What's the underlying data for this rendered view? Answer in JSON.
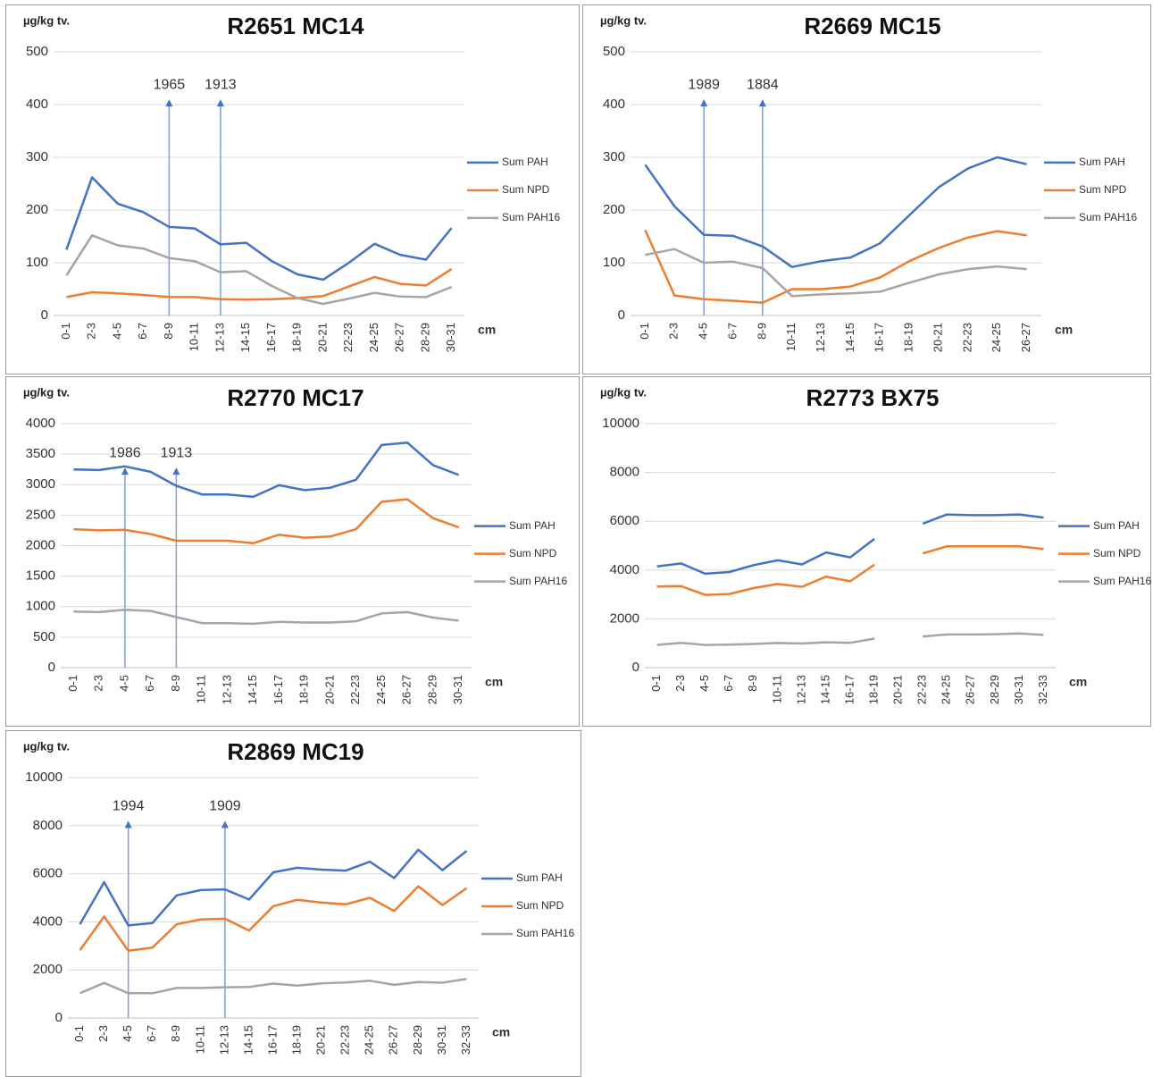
{
  "chart_data": [
    {
      "type": "line",
      "title": "R2651 MC14",
      "y_label": "µg/kg tv.",
      "x_label": "cm",
      "categories": [
        "0-1",
        "2-3",
        "4-5",
        "6-7",
        "8-9",
        "10-11",
        "12-13",
        "14-15",
        "16-17",
        "18-19",
        "20-21",
        "22-23",
        "24-25",
        "26-27",
        "28-29",
        "30-31"
      ],
      "series": [
        {
          "name": "Sum PAH",
          "color": "#4472c4",
          "values": [
            125,
            262,
            212,
            196,
            168,
            165,
            135,
            138,
            103,
            78,
            68,
            100,
            136,
            115,
            106,
            166
          ]
        },
        {
          "name": "Sum NPD",
          "color": "#ed7d31",
          "values": [
            35,
            44,
            42,
            39,
            35,
            35,
            31,
            30,
            31,
            33,
            37,
            55,
            73,
            60,
            57,
            88
          ]
        },
        {
          "name": "Sum PAH16",
          "color": "#a5a5a5",
          "values": [
            76,
            152,
            133,
            127,
            109,
            103,
            82,
            84,
            56,
            33,
            22,
            32,
            43,
            36,
            35,
            54
          ]
        }
      ],
      "ylim": [
        0,
        500
      ],
      "yticks": [
        0,
        100,
        200,
        300,
        400,
        500
      ],
      "grid": true,
      "annotations": [
        {
          "text": "1965",
          "x": "8-9"
        },
        {
          "text": "1913",
          "x": "12-13"
        }
      ]
    },
    {
      "type": "line",
      "title": "R2669 MC15",
      "y_label": "µg/kg tv.",
      "x_label": "cm",
      "categories": [
        "0-1",
        "2-3",
        "4-5",
        "6-7",
        "8-9",
        "10-11",
        "12-13",
        "14-15",
        "16-17",
        "18-19",
        "20-21",
        "22-23",
        "24-25",
        "26-27"
      ],
      "series": [
        {
          "name": "Sum PAH",
          "color": "#4472c4",
          "values": [
            286,
            207,
            153,
            151,
            131,
            92,
            103,
            110,
            137,
            190,
            243,
            279,
            300,
            287
          ]
        },
        {
          "name": "Sum NPD",
          "color": "#ed7d31",
          "values": [
            162,
            38,
            31,
            28,
            24,
            50,
            50,
            55,
            72,
            103,
            128,
            148,
            160,
            152
          ]
        },
        {
          "name": "Sum PAH16",
          "color": "#a5a5a5",
          "values": [
            115,
            126,
            100,
            102,
            90,
            37,
            40,
            42,
            45,
            62,
            78,
            88,
            93,
            88
          ]
        }
      ],
      "ylim": [
        0,
        500
      ],
      "yticks": [
        0,
        100,
        200,
        300,
        400,
        500
      ],
      "grid": true,
      "annotations": [
        {
          "text": "1989",
          "x": "4-5"
        },
        {
          "text": "1884",
          "x": "8-9"
        }
      ]
    },
    {
      "type": "line",
      "title": "R2770 MC17",
      "y_label": "µg/kg tv.",
      "x_label": "cm",
      "categories": [
        "0-1",
        "2-3",
        "4-5",
        "6-7",
        "8-9",
        "10-11",
        "12-13",
        "14-15",
        "16-17",
        "18-19",
        "20-21",
        "22-23",
        "24-25",
        "26-27",
        "28-29",
        "30-31"
      ],
      "series": [
        {
          "name": "Sum PAH",
          "color": "#4472c4",
          "values": [
            3250,
            3240,
            3300,
            3210,
            2980,
            2840,
            2840,
            2800,
            2990,
            2910,
            2950,
            3080,
            3650,
            3690,
            3320,
            3160
          ]
        },
        {
          "name": "Sum NPD",
          "color": "#ed7d31",
          "values": [
            2270,
            2250,
            2260,
            2190,
            2080,
            2080,
            2080,
            2040,
            2180,
            2130,
            2150,
            2270,
            2720,
            2760,
            2450,
            2300
          ]
        },
        {
          "name": "Sum PAH16",
          "color": "#a5a5a5",
          "values": [
            920,
            910,
            950,
            930,
            830,
            730,
            730,
            720,
            750,
            740,
            740,
            760,
            890,
            910,
            820,
            770
          ]
        }
      ],
      "ylim": [
        0,
        4000
      ],
      "yticks": [
        0,
        500,
        1000,
        1500,
        2000,
        2500,
        3000,
        3500,
        4000
      ],
      "grid": true,
      "annotations": [
        {
          "text": "1986",
          "x": "4-5"
        },
        {
          "text": "1913",
          "x": "8-9"
        }
      ]
    },
    {
      "type": "line",
      "title": "R2773 BX75",
      "y_label": "µg/kg tv.",
      "x_label": "cm",
      "categories": [
        "0-1",
        "2-3",
        "4-5",
        "6-7",
        "8-9",
        "10-11",
        "12-13",
        "14-15",
        "16-17",
        "18-19",
        "20-21",
        "22-23",
        "24-25",
        "26-27",
        "28-29",
        "30-31",
        "32-33"
      ],
      "series": [
        {
          "name": "Sum PAH",
          "color": "#4472c4",
          "values": [
            4150,
            4270,
            3850,
            3920,
            4200,
            4400,
            4230,
            4720,
            4520,
            5280,
            null,
            5900,
            6280,
            6250,
            6250,
            6280,
            6150
          ]
        },
        {
          "name": "Sum NPD",
          "color": "#ed7d31",
          "values": [
            3330,
            3340,
            2980,
            3020,
            3260,
            3430,
            3310,
            3730,
            3540,
            4220,
            null,
            4680,
            4970,
            4970,
            4970,
            4970,
            4860
          ]
        },
        {
          "name": "Sum PAH16",
          "color": "#a5a5a5",
          "values": [
            930,
            1020,
            930,
            940,
            970,
            1010,
            990,
            1040,
            1020,
            1190,
            null,
            1280,
            1360,
            1360,
            1370,
            1400,
            1340
          ]
        }
      ],
      "ylim": [
        0,
        10000
      ],
      "yticks": [
        0,
        2000,
        4000,
        6000,
        8000,
        10000
      ],
      "grid": true,
      "annotations": []
    },
    {
      "type": "line",
      "title": "R2869 MC19",
      "y_label": "µg/kg tv.",
      "x_label": "cm",
      "categories": [
        "0-1",
        "2-3",
        "4-5",
        "6-7",
        "8-9",
        "10-11",
        "12-13",
        "14-15",
        "16-17",
        "18-19",
        "20-21",
        "22-23",
        "24-25",
        "26-27",
        "28-29",
        "30-31",
        "32-33"
      ],
      "series": [
        {
          "name": "Sum PAH",
          "color": "#4472c4",
          "values": [
            3900,
            5650,
            3850,
            3950,
            5100,
            5320,
            5350,
            4930,
            6060,
            6250,
            6170,
            6130,
            6500,
            5820,
            7000,
            6150,
            6950
          ]
        },
        {
          "name": "Sum NPD",
          "color": "#ed7d31",
          "values": [
            2820,
            4220,
            2800,
            2930,
            3900,
            4100,
            4130,
            3640,
            4650,
            4920,
            4800,
            4730,
            5000,
            4450,
            5480,
            4700,
            5400
          ]
        },
        {
          "name": "Sum PAH16",
          "color": "#a5a5a5",
          "values": [
            1030,
            1460,
            1030,
            1030,
            1250,
            1250,
            1280,
            1290,
            1430,
            1350,
            1440,
            1480,
            1550,
            1380,
            1500,
            1470,
            1630
          ]
        }
      ],
      "ylim": [
        0,
        10000
      ],
      "yticks": [
        0,
        2000,
        4000,
        6000,
        8000,
        10000
      ],
      "grid": true,
      "annotations": [
        {
          "text": "1994",
          "x": "4-5"
        },
        {
          "text": "1909",
          "x": "12-13"
        }
      ]
    }
  ]
}
